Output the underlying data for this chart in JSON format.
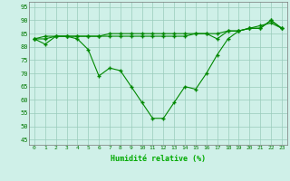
{
  "xlabel": "Humidité relative (%)",
  "background_color": "#cff0e8",
  "grid_color": "#99ccbb",
  "line_color": "#008800",
  "marker_color": "#008800",
  "xlim": [
    -0.5,
    23.5
  ],
  "ylim": [
    43,
    97
  ],
  "yticks": [
    45,
    50,
    55,
    60,
    65,
    70,
    75,
    80,
    85,
    90,
    95
  ],
  "xticks": [
    0,
    1,
    2,
    3,
    4,
    5,
    6,
    7,
    8,
    9,
    10,
    11,
    12,
    13,
    14,
    15,
    16,
    17,
    18,
    19,
    20,
    21,
    22,
    23
  ],
  "xtick_labels": [
    "0",
    "1",
    "2",
    "3",
    "4",
    "5",
    "6",
    "7",
    "8",
    "9",
    "10",
    "11",
    "12",
    "13",
    "14",
    "15",
    "16",
    "17",
    "18",
    "19",
    "20",
    "21",
    "22",
    "23"
  ],
  "series": [
    [
      83,
      81,
      84,
      84,
      83,
      79,
      69,
      72,
      71,
      65,
      59,
      53,
      53,
      59,
      65,
      64,
      70,
      77,
      83,
      86,
      87,
      87,
      90,
      87
    ],
    [
      83,
      84,
      84,
      84,
      84,
      84,
      84,
      85,
      85,
      85,
      85,
      85,
      85,
      85,
      85,
      85,
      85,
      83,
      86,
      86,
      87,
      87,
      90,
      87
    ],
    [
      83,
      83,
      84,
      84,
      84,
      84,
      84,
      84,
      84,
      84,
      84,
      84,
      84,
      84,
      84,
      85,
      85,
      85,
      86,
      86,
      87,
      88,
      89,
      87
    ]
  ]
}
